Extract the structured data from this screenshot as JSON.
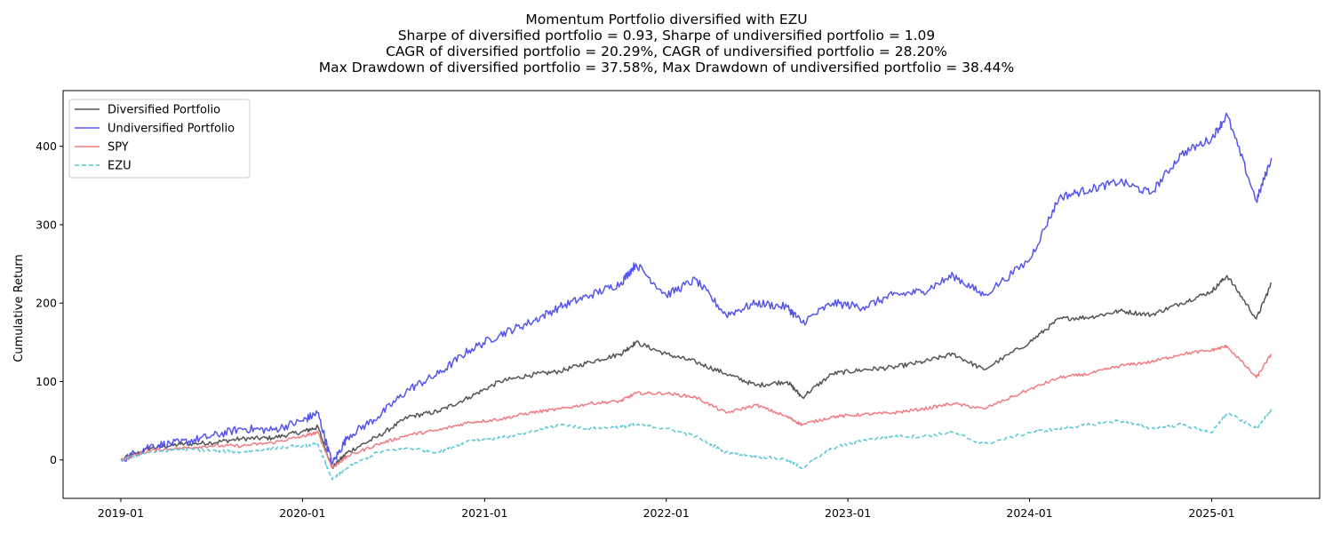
{
  "chart_data": {
    "type": "line",
    "title_lines": [
      "Momentum Portfolio diversified with EZU",
      "Sharpe of diversified portfolio = 0.93, Sharpe of undiversified portfolio = 1.09",
      "CAGR of diversified portfolio = 20.29%, CAGR of undiversified portfolio = 28.20%",
      "Max Drawdown of diversified portfolio = 37.58%, Max Drawdown of undiversified portfolio = 38.44%"
    ],
    "xlabel": "",
    "ylabel": "Cumulative Return",
    "x_ticks": [
      "2019-01",
      "2020-01",
      "2021-01",
      "2022-01",
      "2023-01",
      "2024-01",
      "2025-01"
    ],
    "y_ticks": [
      0,
      100,
      200,
      300,
      400
    ],
    "xlim": [
      "2018-09-07",
      "2025-08-06"
    ],
    "ylim": [
      -49,
      471
    ],
    "grid": false,
    "legend_position": "upper-left",
    "series": [
      {
        "name": "Diversified Portfolio",
        "color": "#555555",
        "dash": "solid",
        "x": [
          "2019-01",
          "2019-03",
          "2019-05",
          "2019-07",
          "2019-09",
          "2019-11",
          "2020-01",
          "2020-02",
          "2020-03",
          "2020-04",
          "2020-06",
          "2020-08",
          "2020-10",
          "2020-12",
          "2021-02",
          "2021-04",
          "2021-06",
          "2021-08",
          "2021-10",
          "2021-11",
          "2022-01",
          "2022-03",
          "2022-05",
          "2022-07",
          "2022-09",
          "2022-10",
          "2022-12",
          "2023-02",
          "2023-04",
          "2023-06",
          "2023-08",
          "2023-10",
          "2024-01",
          "2024-03",
          "2024-05",
          "2024-07",
          "2024-09",
          "2024-11",
          "2025-01",
          "2025-02",
          "2025-04",
          "2025-05"
        ],
        "y": [
          0,
          15,
          20,
          22,
          27,
          28,
          36,
          42,
          -10,
          10,
          30,
          55,
          62,
          80,
          100,
          108,
          113,
          125,
          135,
          150,
          135,
          125,
          110,
          95,
          100,
          80,
          110,
          115,
          118,
          125,
          135,
          115,
          150,
          180,
          182,
          190,
          185,
          200,
          215,
          235,
          180,
          225
        ]
      },
      {
        "name": "Undiversified Portfolio",
        "color": "#5555ee",
        "dash": "solid",
        "x": [
          "2019-01",
          "2019-03",
          "2019-05",
          "2019-07",
          "2019-09",
          "2019-11",
          "2020-01",
          "2020-02",
          "2020-03",
          "2020-04",
          "2020-06",
          "2020-08",
          "2020-10",
          "2020-12",
          "2021-02",
          "2021-04",
          "2021-06",
          "2021-08",
          "2021-10",
          "2021-11",
          "2022-01",
          "2022-03",
          "2022-05",
          "2022-07",
          "2022-09",
          "2022-10",
          "2022-12",
          "2023-02",
          "2023-04",
          "2023-06",
          "2023-08",
          "2023-10",
          "2024-01",
          "2024-03",
          "2024-05",
          "2024-07",
          "2024-09",
          "2024-11",
          "2025-01",
          "2025-02",
          "2025-04",
          "2025-05"
        ],
        "y": [
          0,
          18,
          22,
          30,
          40,
          38,
          50,
          60,
          -5,
          30,
          55,
          90,
          110,
          140,
          160,
          175,
          195,
          210,
          225,
          250,
          210,
          230,
          185,
          200,
          195,
          175,
          200,
          195,
          210,
          215,
          235,
          210,
          255,
          335,
          345,
          355,
          340,
          390,
          410,
          440,
          330,
          385
        ]
      },
      {
        "name": "SPY",
        "color": "#f07c82",
        "dash": "solid",
        "x": [
          "2019-01",
          "2019-03",
          "2019-05",
          "2019-07",
          "2019-09",
          "2019-11",
          "2020-01",
          "2020-02",
          "2020-03",
          "2020-04",
          "2020-06",
          "2020-08",
          "2020-10",
          "2020-12",
          "2021-02",
          "2021-04",
          "2021-06",
          "2021-08",
          "2021-10",
          "2021-11",
          "2022-01",
          "2022-03",
          "2022-05",
          "2022-07",
          "2022-09",
          "2022-10",
          "2022-12",
          "2023-02",
          "2023-04",
          "2023-06",
          "2023-08",
          "2023-10",
          "2024-01",
          "2024-03",
          "2024-05",
          "2024-07",
          "2024-09",
          "2024-11",
          "2025-01",
          "2025-02",
          "2025-04",
          "2025-05"
        ],
        "y": [
          0,
          12,
          15,
          18,
          18,
          22,
          30,
          35,
          -10,
          5,
          20,
          32,
          38,
          48,
          52,
          60,
          65,
          72,
          75,
          85,
          85,
          80,
          60,
          70,
          55,
          45,
          55,
          58,
          60,
          65,
          72,
          65,
          90,
          105,
          110,
          120,
          125,
          135,
          140,
          145,
          105,
          135
        ]
      },
      {
        "name": "EZU",
        "color": "#5bc7d6",
        "dash": "dashed",
        "x": [
          "2019-01",
          "2019-03",
          "2019-05",
          "2019-07",
          "2019-09",
          "2019-11",
          "2020-01",
          "2020-02",
          "2020-03",
          "2020-04",
          "2020-06",
          "2020-08",
          "2020-10",
          "2020-12",
          "2021-02",
          "2021-04",
          "2021-06",
          "2021-08",
          "2021-10",
          "2021-11",
          "2022-01",
          "2022-03",
          "2022-05",
          "2022-07",
          "2022-09",
          "2022-10",
          "2022-12",
          "2023-02",
          "2023-04",
          "2023-06",
          "2023-08",
          "2023-10",
          "2024-01",
          "2024-03",
          "2024-05",
          "2024-07",
          "2024-09",
          "2024-11",
          "2025-01",
          "2025-02",
          "2025-04",
          "2025-05"
        ],
        "y": [
          0,
          10,
          14,
          12,
          10,
          15,
          18,
          20,
          -25,
          -10,
          10,
          15,
          10,
          25,
          28,
          35,
          45,
          40,
          42,
          45,
          40,
          30,
          10,
          5,
          0,
          -10,
          15,
          25,
          30,
          30,
          35,
          20,
          35,
          40,
          45,
          50,
          40,
          45,
          35,
          60,
          40,
          65
        ]
      }
    ]
  }
}
